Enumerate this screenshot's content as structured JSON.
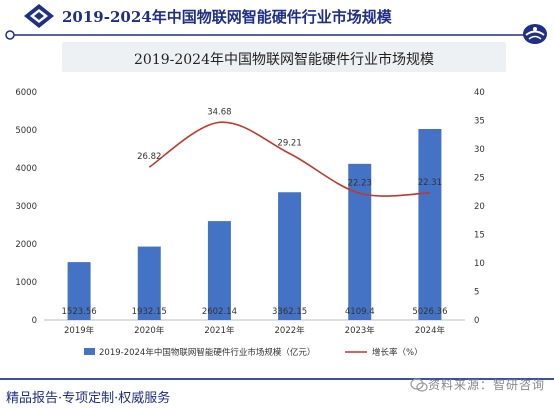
{
  "header": {
    "title": "2019-2024年中国物联网智能硬件行业市场规模"
  },
  "footer": {
    "text": "精品报告·专项定制·权威服务"
  },
  "watermark": {
    "text": "资料来源：智研咨询"
  },
  "colors": {
    "brand": "#1f2f86",
    "bar": "#4472c4",
    "line": "#c0392b",
    "footer_line": "#3b4fa8"
  },
  "chart_data": {
    "type": "bar",
    "title": "2019-2024年中国物联网智能硬件行业市场规模",
    "categories": [
      "2019年",
      "2020年",
      "2021年",
      "2022年",
      "2023年",
      "2024年"
    ],
    "series": [
      {
        "name": "2019-2024年中国物联网智能硬件行业市场规模（亿元）",
        "type": "bar",
        "axis": "left",
        "values": [
          1523.56,
          1932.15,
          2602.14,
          3362.15,
          4109.4,
          5026.36
        ],
        "labels": [
          "1523.56",
          "1932.15",
          "2602.14",
          "3362.15",
          "4109.4",
          "5026.36"
        ]
      },
      {
        "name": "增长率（%）",
        "type": "line",
        "axis": "right",
        "values": [
          null,
          26.82,
          34.68,
          29.21,
          22.23,
          22.31
        ],
        "labels": [
          "",
          "26.82",
          "34.68",
          "29.21",
          "22.23",
          "22.31"
        ]
      }
    ],
    "y_left": {
      "min": 0,
      "max": 6000,
      "step": 1000,
      "ticks": [
        "0",
        "1000",
        "2000",
        "3000",
        "4000",
        "5000",
        "6000"
      ]
    },
    "y_right": {
      "min": 0,
      "max": 40,
      "step": 5,
      "ticks": [
        "0",
        "5",
        "10",
        "15",
        "20",
        "25",
        "30",
        "35",
        "40"
      ]
    },
    "xlabel": "",
    "ylabel": "",
    "grid": false,
    "legend_position": "bottom"
  }
}
